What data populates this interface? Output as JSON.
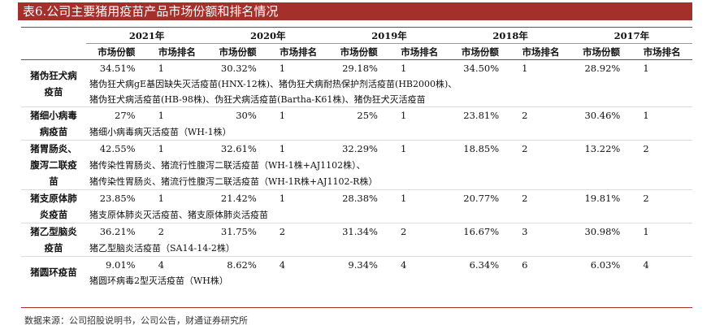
{
  "title": "表6.公司主要猪用疫苗产品市场份额和排名情况",
  "table": {
    "years": [
      "2021年",
      "2020年",
      "2019年",
      "2018年",
      "2017年"
    ],
    "subheaders": [
      "市场份额",
      "市场排名"
    ],
    "rows": [
      {
        "label": "猪伪狂犬病疫苗",
        "values": [
          "34.51%",
          1,
          "30.32%",
          1,
          "29.18%",
          1,
          "34.50%",
          1,
          "28.92%",
          1
        ],
        "products": [
          "猪伪狂犬病gE基因缺失灭活疫苗(HNX-12株)、猪伪狂犬病耐热保护剂活疫苗(HB2000株)、",
          "猪伪狂犬病活疫苗(HB-98株)、伪狂犬病活疫苗(Bartha-K61株)、猪伪狂犬灭活疫苗"
        ]
      },
      {
        "label": "猪细小病毒病疫苗",
        "values": [
          "27%",
          1,
          "30%",
          1,
          "25%",
          1,
          "23.81%",
          2,
          "30.46%",
          1
        ],
        "products": [
          "猪细小病毒病灭活疫苗（WH-1株）"
        ]
      },
      {
        "label": "猪胃肠炎、腹泻二联疫苗",
        "values": [
          "42.55%",
          1,
          "32.61%",
          1,
          "32.29%",
          1,
          "18.85%",
          2,
          "13.22%",
          2
        ],
        "products": [
          "猪传染性胃肠炎、猪流行性腹泻二联活疫苗（WH-1株+AJ1102株）、",
          "猪传染性胃肠炎、猪流行性腹泻二联活疫苗（WH-1R株+AJ1102-R株）"
        ]
      },
      {
        "label": "猪支原体肺炎疫苗",
        "values": [
          "23.85%",
          1,
          "21.42%",
          1,
          "28.38%",
          1,
          "20.77%",
          2,
          "19.81%",
          2
        ],
        "products": [
          "猪支原体肺炎灭活疫苗、猪支原体肺炎活疫苗"
        ]
      },
      {
        "label": "猪乙型脑炎疫苗",
        "values": [
          "36.21%",
          2,
          "31.75%",
          2,
          "31.34%",
          2,
          "16.67%",
          3,
          "30.98%",
          1
        ],
        "products": [
          "猪乙型脑炎活疫苗（SA14-14-2株）"
        ]
      },
      {
        "label": "猪圆环疫苗",
        "values": [
          "9.01%",
          4,
          "8.62%",
          4,
          "9.34%",
          4,
          "6.34%",
          6,
          "6.03%",
          4
        ],
        "products": [
          "猪圆环病毒2型灭活疫苗（WH株）"
        ]
      }
    ]
  },
  "source": "数据来源：公司招股说明书，公司公告，财通证券研究所"
}
